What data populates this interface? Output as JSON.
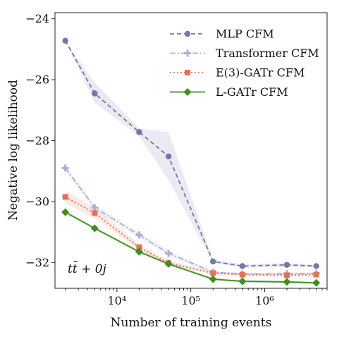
{
  "chart_data": {
    "type": "line",
    "xlabel": "Number of training events",
    "ylabel": "Negative log likelihood",
    "xscale": "log",
    "xlim": [
      1450,
      7000000
    ],
    "ylim": [
      -32.85,
      -23.8
    ],
    "x_ticks": [
      {
        "value": 10000,
        "label": "10⁴"
      },
      {
        "value": 100000,
        "label": "10⁵"
      },
      {
        "value": 1000000,
        "label": "10⁶"
      }
    ],
    "y_ticks": [
      {
        "value": -24,
        "label": "−24"
      },
      {
        "value": -26,
        "label": "−26"
      },
      {
        "value": -28,
        "label": "−28"
      },
      {
        "value": -30,
        "label": "−30"
      },
      {
        "value": -32,
        "label": "−32"
      }
    ],
    "legend_position": "top-right",
    "grid": false,
    "annotation": {
      "text": "tt̄ + 0j",
      "position": "bottom-left"
    },
    "series": [
      {
        "name": "MLP CFM",
        "color": "#7a75a6",
        "dash": "dashed",
        "marker": "circle",
        "x": [
          2000,
          5000,
          20000,
          50000,
          200000,
          500000,
          2000000,
          5000000
        ],
        "y": [
          -24.72,
          -26.45,
          -27.72,
          -28.52,
          -31.97,
          -32.12,
          -32.08,
          -32.12
        ],
        "band_low": [
          -24.72,
          -26.75,
          -27.85,
          -29.3,
          -32.0,
          -32.18,
          -32.14,
          -32.16
        ],
        "band_high": [
          -24.72,
          -26.1,
          -27.6,
          -27.72,
          -31.9,
          -32.06,
          -32.02,
          -32.08
        ]
      },
      {
        "name": "Transformer CFM",
        "color": "#b1acd6",
        "dash": "dashdot",
        "marker": "plus",
        "x": [
          2000,
          5000,
          20000,
          50000,
          200000,
          500000,
          2000000,
          5000000
        ],
        "y": [
          -28.9,
          -30.2,
          -31.1,
          -31.7,
          -32.32,
          -32.38,
          -32.37,
          -32.36
        ],
        "band_low": [
          -29.0,
          -30.3,
          -31.2,
          -31.8,
          -32.36,
          -32.42,
          -32.41,
          -32.4
        ],
        "band_high": [
          -28.8,
          -30.1,
          -31.0,
          -31.6,
          -32.28,
          -32.34,
          -32.33,
          -32.32
        ]
      },
      {
        "name": "E(3)-GATr CFM",
        "color": "#e27257",
        "dash": "dotted",
        "marker": "square",
        "x": [
          2000,
          5000,
          20000,
          50000,
          200000,
          500000,
          2000000,
          5000000
        ],
        "y": [
          -29.85,
          -30.38,
          -31.5,
          -32.02,
          -32.35,
          -32.4,
          -32.42,
          -32.4
        ],
        "band_low": [
          -30.05,
          -30.55,
          -31.6,
          -32.1,
          -32.4,
          -32.45,
          -32.47,
          -32.45
        ],
        "band_high": [
          -29.65,
          -30.2,
          -31.4,
          -31.94,
          -32.3,
          -32.35,
          -32.37,
          -32.35
        ]
      },
      {
        "name": "L-GATr CFM",
        "color": "#3f8f1c",
        "dash": "solid",
        "marker": "diamond",
        "x": [
          2000,
          5000,
          20000,
          50000,
          200000,
          500000,
          2000000,
          5000000
        ],
        "y": [
          -30.35,
          -30.88,
          -31.65,
          -32.05,
          -32.55,
          -32.62,
          -32.64,
          -32.67
        ],
        "band_low": [
          -30.4,
          -30.93,
          -31.7,
          -32.1,
          -32.59,
          -32.66,
          -32.68,
          -32.71
        ],
        "band_high": [
          -30.3,
          -30.83,
          -31.6,
          -32.0,
          -32.51,
          -32.58,
          -32.6,
          -32.63
        ]
      }
    ]
  }
}
